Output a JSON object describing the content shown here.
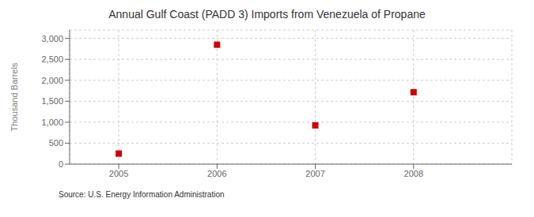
{
  "chart_data": {
    "type": "scatter",
    "title": "Annual Gulf Coast (PADD 3) Imports from Venezuela of Propane",
    "ylabel": "Thousand Barrels",
    "annotation": "Source: U.S. Energy Information Administration",
    "x": [
      2005,
      2006,
      2007,
      2008
    ],
    "values": [
      252,
      2849,
      925,
      1716
    ],
    "color": "#cc0000",
    "marker": "square",
    "xlim": [
      2004.5,
      2009.0
    ],
    "xticks": [
      2005,
      2006,
      2007,
      2008
    ],
    "ylim": [
      0,
      3200
    ],
    "yticks": [
      0,
      500,
      {
        "value": 1000,
        "label": "1,000"
      },
      {
        "value": 1500,
        "label": "1,500"
      },
      {
        "value": 2000,
        "label": "2,000"
      },
      {
        "value": 2500,
        "label": "2,500"
      },
      {
        "value": 3000,
        "label": "3,000"
      }
    ],
    "grid": true
  }
}
